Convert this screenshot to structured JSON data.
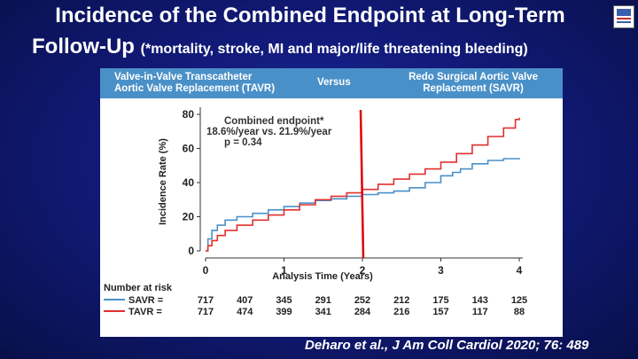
{
  "title": {
    "line1": "Incidence of the Combined Endpoint at Long-Term",
    "line2_main": "Follow-Up",
    "line2_sub": "(*mortality, stroke, MI and major/life threatening bleeding)"
  },
  "banner": {
    "left_line1": "Valve-in-Valve Transcatheter",
    "left_line2": "Aortic Valve Replacement (TAVR)",
    "middle": "Versus",
    "right_line1": "Redo Surgical Aortic Valve",
    "right_line2": "Replacement (SAVR)"
  },
  "annotation": {
    "line1": "Combined endpoint*",
    "line2": "18.6%/year vs. 21.9%/year",
    "line3": "p = 0.34"
  },
  "risk_table": {
    "title": "Number at risk",
    "rows": [
      {
        "label": "SAVR =",
        "color": "#4a90c8",
        "values": [
          "717",
          "407",
          "345",
          "291",
          "252",
          "212",
          "175",
          "143",
          "125"
        ]
      },
      {
        "label": "TAVR =",
        "color": "#e0302e",
        "values": [
          "717",
          "474",
          "399",
          "341",
          "284",
          "216",
          "157",
          "117",
          "88"
        ]
      }
    ]
  },
  "citation": "Deharo et al., J Am Coll Cardiol 2020; 76: 489",
  "colors": {
    "savr": "#4a90c8",
    "tavr": "#e0302e",
    "marker": "#e00000"
  },
  "chart_data": {
    "type": "line",
    "xlabel": "Analysis Time (Years)",
    "ylabel": "Incidence Rate (%)",
    "xlim": [
      0,
      4
    ],
    "ylim": [
      0,
      80
    ],
    "xticks": [
      "0",
      "1",
      "2",
      "3",
      "4"
    ],
    "yticks": [
      "0",
      "20",
      "40",
      "60",
      "80"
    ],
    "vertical_marker_x": 2,
    "series": [
      {
        "name": "SAVR",
        "points": [
          [
            0,
            0
          ],
          [
            0.03,
            7
          ],
          [
            0.08,
            12
          ],
          [
            0.15,
            15
          ],
          [
            0.25,
            18
          ],
          [
            0.4,
            20
          ],
          [
            0.6,
            22
          ],
          [
            0.8,
            24
          ],
          [
            1.0,
            26
          ],
          [
            1.2,
            28
          ],
          [
            1.4,
            29.5
          ],
          [
            1.6,
            30.5
          ],
          [
            1.8,
            32
          ],
          [
            2.0,
            33
          ],
          [
            2.2,
            34
          ],
          [
            2.4,
            35
          ],
          [
            2.6,
            37
          ],
          [
            2.8,
            40
          ],
          [
            3.0,
            44
          ],
          [
            3.15,
            46
          ],
          [
            3.25,
            48
          ],
          [
            3.4,
            51
          ],
          [
            3.6,
            53
          ],
          [
            3.8,
            54
          ],
          [
            4.0,
            54.5
          ]
        ]
      },
      {
        "name": "TAVR",
        "points": [
          [
            0,
            0
          ],
          [
            0.03,
            3
          ],
          [
            0.08,
            6
          ],
          [
            0.15,
            9
          ],
          [
            0.25,
            12
          ],
          [
            0.4,
            15
          ],
          [
            0.6,
            18
          ],
          [
            0.8,
            21
          ],
          [
            1.0,
            24
          ],
          [
            1.2,
            27
          ],
          [
            1.4,
            30
          ],
          [
            1.6,
            32
          ],
          [
            1.8,
            34
          ],
          [
            2.0,
            36
          ],
          [
            2.2,
            39
          ],
          [
            2.4,
            42
          ],
          [
            2.6,
            45
          ],
          [
            2.8,
            48
          ],
          [
            3.0,
            52
          ],
          [
            3.2,
            57
          ],
          [
            3.4,
            62
          ],
          [
            3.6,
            67
          ],
          [
            3.8,
            72
          ],
          [
            3.95,
            77
          ],
          [
            4.0,
            78
          ]
        ]
      }
    ]
  }
}
